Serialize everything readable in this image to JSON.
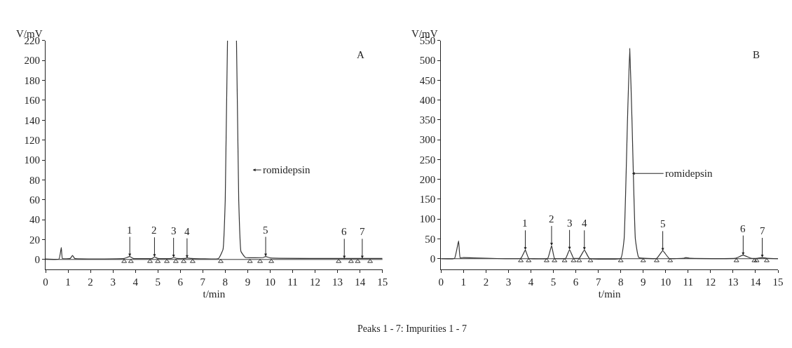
{
  "chart_data": [
    {
      "type": "line",
      "title": "A",
      "xlabel": "t/min",
      "ylabel": "V/mV",
      "xlim": [
        0,
        15
      ],
      "xticks": [
        0,
        1,
        2,
        3,
        4,
        5,
        6,
        7,
        8,
        9,
        10,
        11,
        12,
        13,
        14,
        15
      ],
      "ylim": [
        -10,
        220
      ],
      "yticks": [
        0,
        20,
        40,
        60,
        80,
        100,
        120,
        140,
        160,
        180,
        200,
        220
      ],
      "grid": false,
      "ref_lines": [
        {
          "axis": "y",
          "value": 0,
          "color": "#333333"
        }
      ],
      "marker": "none",
      "line_style": "solid",
      "series": [
        {
          "color": "#333333",
          "x": [
            0,
            0.6,
            0.7,
            0.75,
            1.1,
            1.2,
            1.3,
            3.5,
            3.75,
            3.9,
            4.75,
            4.85,
            5.0,
            5.6,
            5.7,
            5.85,
            6.2,
            6.3,
            6.5,
            7.7,
            7.9,
            8.0,
            8.1,
            8.3,
            8.5,
            8.6,
            8.7,
            8.9,
            9.7,
            9.8,
            10.0,
            15
          ],
          "values": [
            0.5,
            0.5,
            12,
            1,
            1,
            4,
            1,
            1,
            3,
            1,
            1,
            2.5,
            1,
            1,
            2,
            1,
            1,
            1.5,
            1,
            1,
            10,
            60,
            220,
            null,
            220,
            60,
            8,
            2,
            2,
            3,
            1.5,
            1
          ]
        },
        {
          "type": "scatter",
          "marker": "triangle",
          "color": "#333333",
          "x": [
            3.5,
            3.8,
            4.65,
            5.0,
            5.4,
            5.8,
            6.15,
            6.55,
            7.8,
            9.1,
            9.55,
            10.05,
            13.05,
            13.6,
            13.9,
            14.45
          ],
          "values": [
            -2,
            -2,
            -2,
            -2,
            -2,
            -2,
            -2,
            -2,
            -2,
            -2,
            -2,
            -2,
            -2,
            -2,
            -2,
            -2
          ]
        }
      ],
      "annotations": [
        {
          "text": "1",
          "x": 3.75,
          "y": 3
        },
        {
          "text": "2",
          "x": 4.85,
          "y": 2.5
        },
        {
          "text": "3",
          "x": 5.7,
          "y": 2
        },
        {
          "text": "4",
          "x": 6.3,
          "y": 1.5
        },
        "romidepsin",
        {
          "text": "5",
          "x": 9.8,
          "y": 3
        },
        {
          "text": "6",
          "x": 13.3,
          "y": 1
        },
        {
          "text": "7",
          "x": 14.1,
          "y": 1
        },
        "Peaks 1 - 7: Impurities 1 - 7"
      ]
    },
    {
      "type": "line",
      "title": "B",
      "xlabel": "t/min",
      "ylabel": "V/mV",
      "xlim": [
        0,
        15
      ],
      "xticks": [
        0,
        1,
        2,
        3,
        4,
        5,
        6,
        7,
        8,
        9,
        10,
        11,
        12,
        13,
        14,
        15
      ],
      "ylim": [
        -27,
        550
      ],
      "yticks": [
        0,
        50,
        100,
        150,
        200,
        250,
        300,
        350,
        400,
        450,
        500,
        550
      ],
      "grid": false,
      "ref_lines": [
        {
          "axis": "y",
          "value": 0,
          "color": "#333333"
        }
      ],
      "marker": "none",
      "line_style": "solid",
      "series": [
        {
          "color": "#333333",
          "x": [
            0,
            0.6,
            0.78,
            0.85,
            1.0,
            3.55,
            3.75,
            3.9,
            4.75,
            4.92,
            5.05,
            5.55,
            5.72,
            5.9,
            6.15,
            6.38,
            6.6,
            8.0,
            8.15,
            8.3,
            8.4,
            8.5,
            8.65,
            8.8,
            9.6,
            9.87,
            10.15,
            10.8,
            10.9,
            11.1,
            13.1,
            13.45,
            13.8,
            14.1,
            14.3,
            14.5,
            15
          ],
          "values": [
            0,
            1,
            45,
            2,
            3,
            1,
            22,
            1,
            1,
            33,
            1,
            1,
            23,
            1,
            1,
            22,
            1,
            1,
            50,
            350,
            530,
            350,
            50,
            3,
            1,
            20,
            1,
            1,
            3,
            1,
            1,
            9,
            1,
            1,
            3,
            1,
            0
          ]
        },
        {
          "type": "scatter",
          "marker": "triangle",
          "color": "#333333",
          "x": [
            3.55,
            3.9,
            4.7,
            5.05,
            5.5,
            5.9,
            6.15,
            6.65,
            8.0,
            9.0,
            9.6,
            10.2,
            13.15,
            13.95,
            14.05,
            14.5
          ],
          "values": [
            -5,
            -5,
            -5,
            -5,
            -5,
            -5,
            -5,
            -5,
            -5,
            -5,
            -5,
            -5,
            -5,
            -5,
            -5,
            -5
          ]
        }
      ],
      "annotations": [
        {
          "text": "1",
          "x": 3.75,
          "y": 22
        },
        {
          "text": "2",
          "x": 4.92,
          "y": 33
        },
        {
          "text": "3",
          "x": 5.72,
          "y": 23
        },
        {
          "text": "4",
          "x": 6.38,
          "y": 22
        },
        {
          "text": "romidepsin",
          "x": 8.5,
          "y": 215
        },
        {
          "text": "5",
          "x": 9.87,
          "y": 20
        },
        {
          "text": "6",
          "x": 13.45,
          "y": 9
        },
        {
          "text": "7",
          "x": 14.3,
          "y": 3
        }
      ]
    }
  ]
}
